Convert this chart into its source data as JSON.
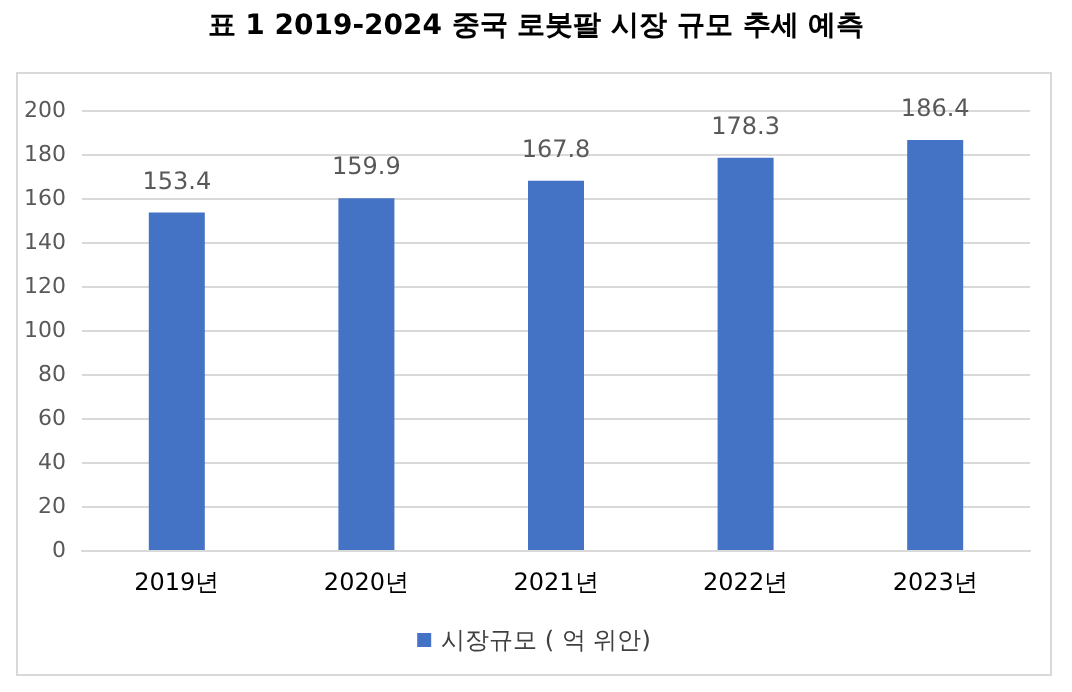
{
  "chart_data": {
    "type": "bar",
    "title": "표 1 2019-2024 중국 로봇팔 시장 규모 추세 예측",
    "categories": [
      "2019년",
      "2020년",
      "2021년",
      "2022년",
      "2023년"
    ],
    "series": [
      {
        "name": "시장규모 ( 억 위안)",
        "color": "#4472c4",
        "values": [
          153.4,
          159.9,
          167.8,
          178.3,
          186.4
        ]
      }
    ],
    "ylim": [
      0,
      200
    ],
    "yticks": [
      0,
      20,
      40,
      60,
      80,
      100,
      120,
      140,
      160,
      180,
      200
    ],
    "grid": "y",
    "legend": "bottom",
    "data_labels": true
  }
}
